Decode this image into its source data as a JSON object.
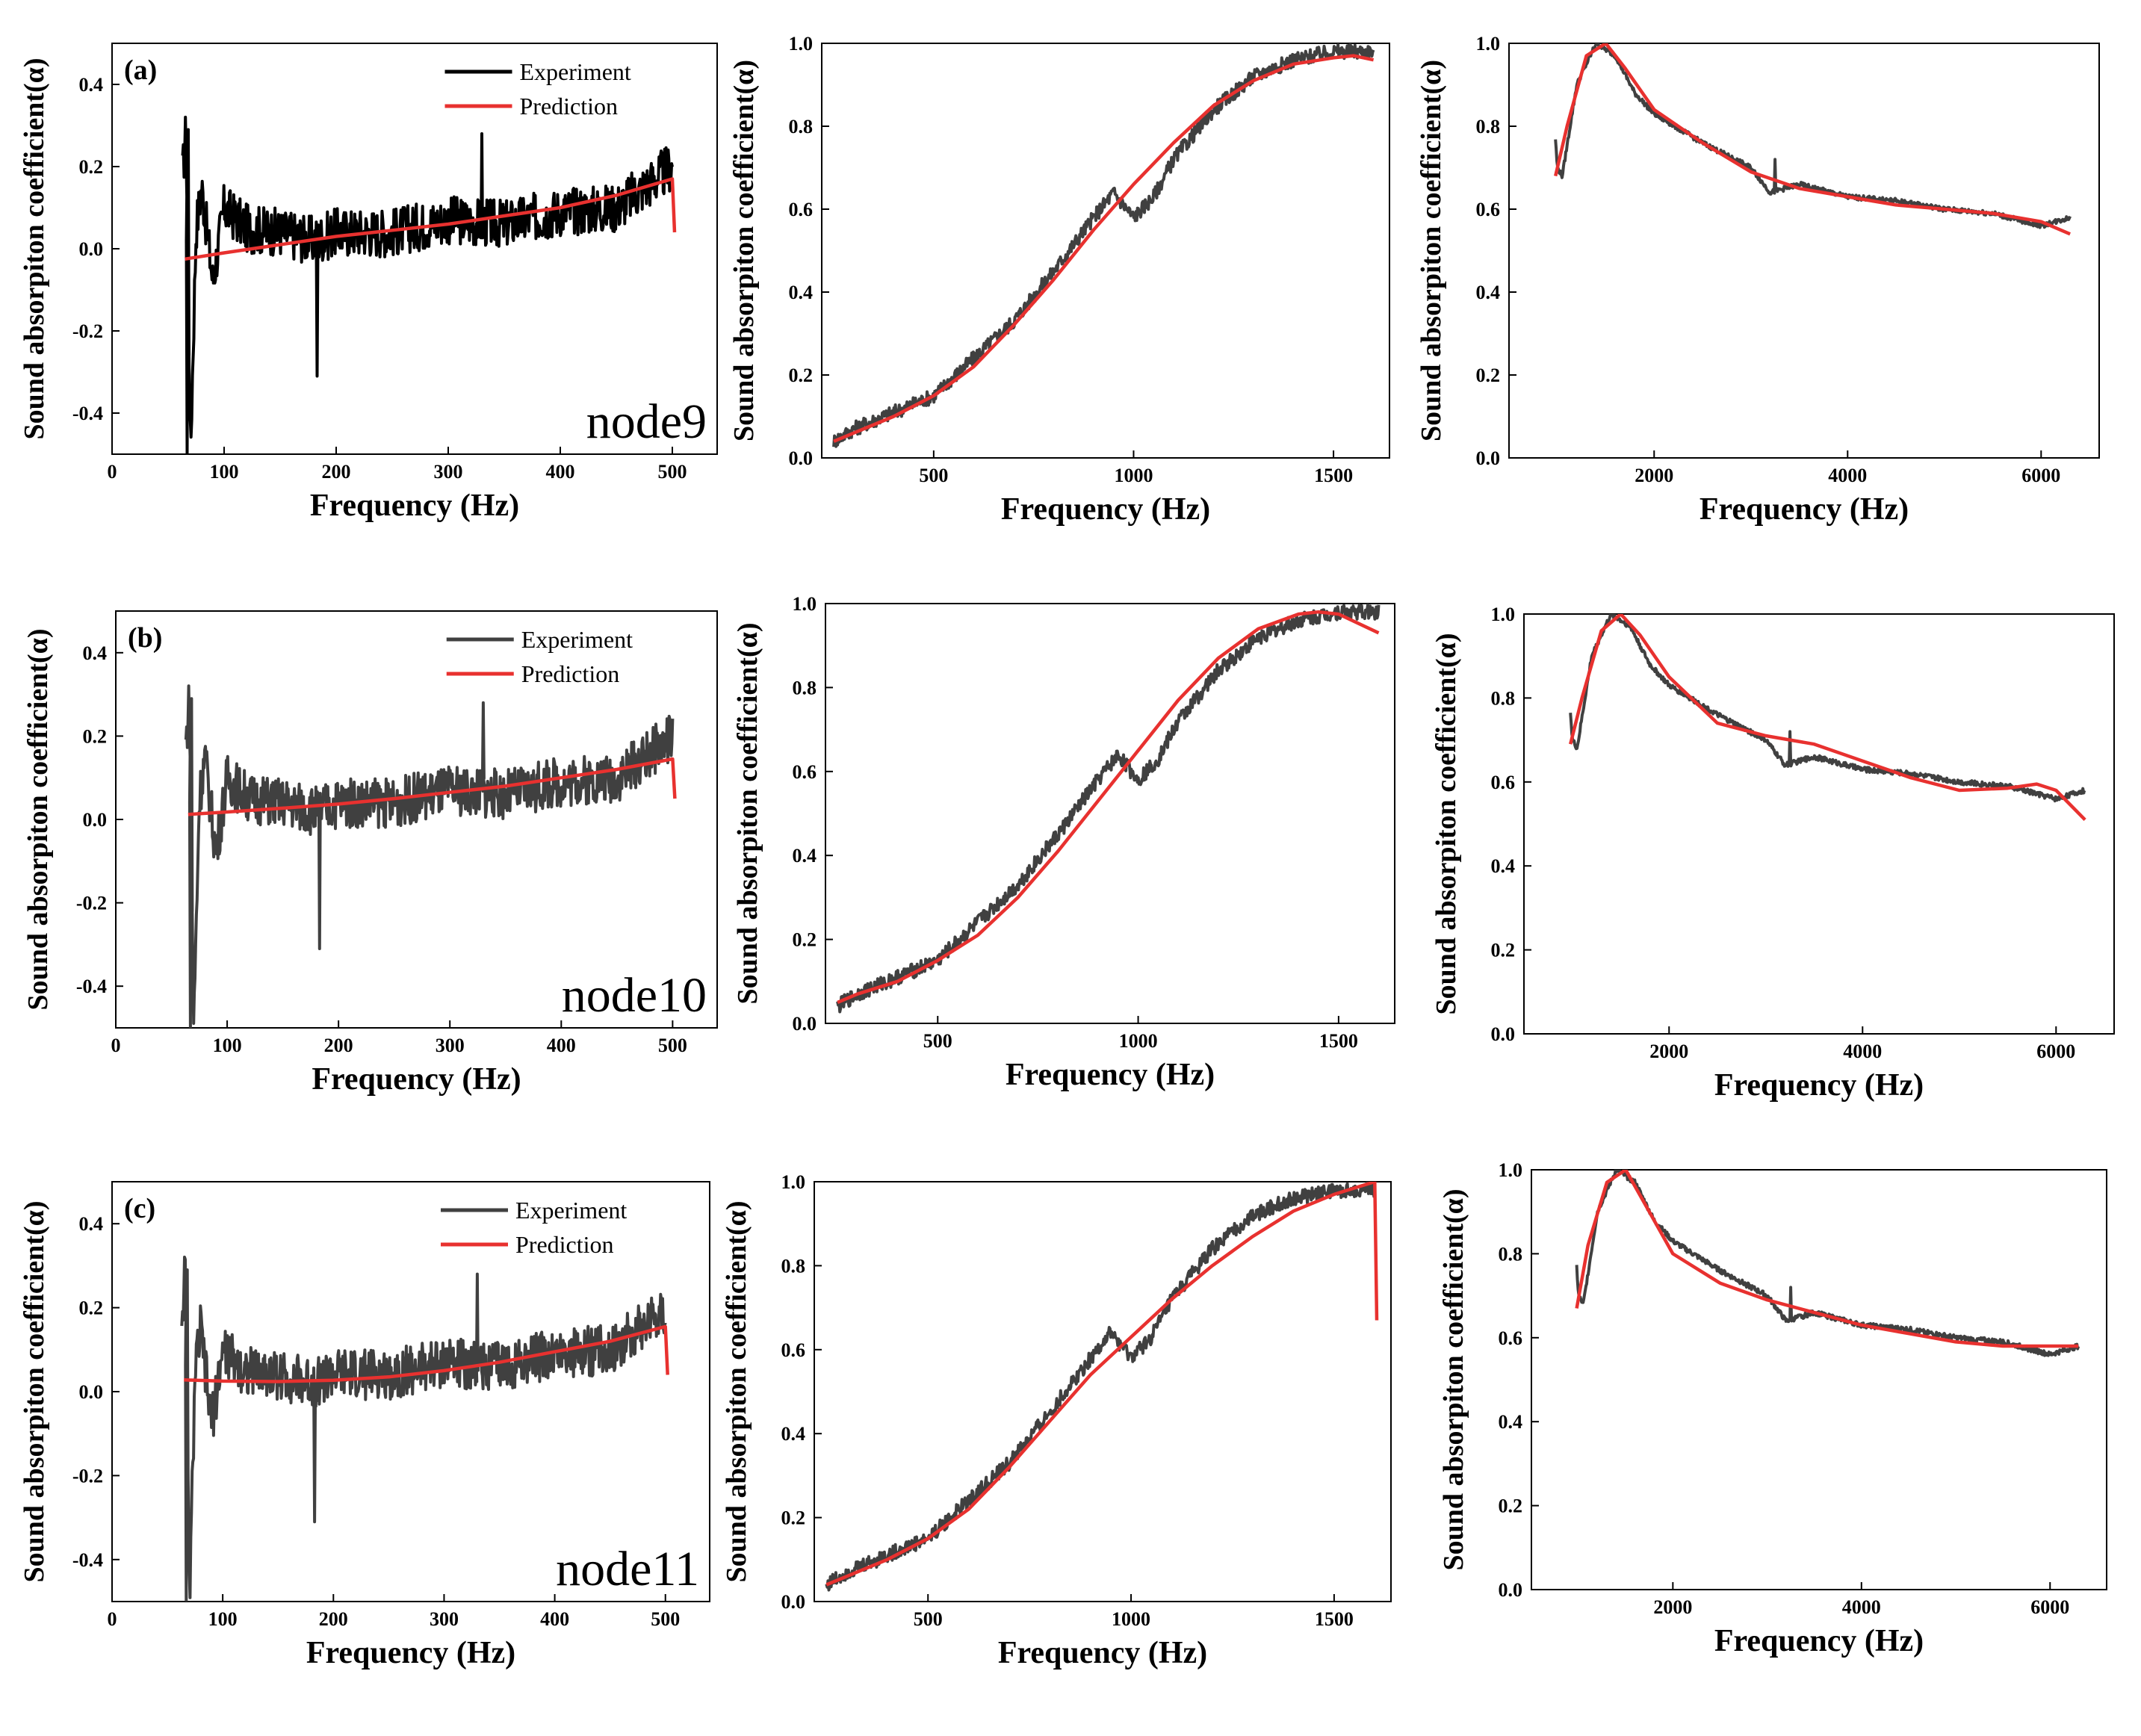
{
  "figure": {
    "colors": {
      "experiment": "#000000",
      "experiment_gray": "#404040",
      "prediction": "#e8312f",
      "axis": "#000000"
    }
  },
  "chart_data": [
    {
      "id": "a1",
      "type": "line",
      "panel_letter": "(a)",
      "annotation": "node9",
      "xlabel": "Frequency (Hz)",
      "ylabel": "Sound absorpiton coefficient(α)",
      "xlim": [
        0,
        540
      ],
      "ylim": [
        -0.5,
        0.5
      ],
      "xticks": [
        0,
        100,
        200,
        300,
        400,
        500
      ],
      "yticks": [
        -0.4,
        -0.2,
        0.0,
        0.2,
        0.4
      ],
      "ytick_labels": [
        "-0.4",
        "-0.2",
        "0.0",
        "0.2",
        "0.4"
      ],
      "legend": [
        "Experiment",
        "Prediction"
      ],
      "series": [
        {
          "name": "Experiment",
          "color": "#000000",
          "kind": "noisy_low",
          "x": [
            63,
            66,
            70,
            75,
            80,
            90,
            100,
            120,
            150,
            180,
            200,
            250,
            300,
            350,
            400,
            450,
            500
          ],
          "values": [
            0.18,
            0.29,
            -0.5,
            0.05,
            0.15,
            -0.08,
            0.1,
            0.05,
            0.04,
            0.02,
            0.04,
            0.04,
            0.07,
            0.06,
            0.09,
            0.1,
            0.2
          ]
        },
        {
          "name": "Prediction",
          "color": "#e8312f",
          "x": [
            65,
            100,
            150,
            200,
            250,
            300,
            350,
            400,
            450,
            500,
            502
          ],
          "values": [
            -0.025,
            -0.01,
            0.01,
            0.03,
            0.045,
            0.06,
            0.08,
            0.1,
            0.13,
            0.17,
            0.04
          ]
        }
      ],
      "spikes": [
        {
          "x": 67,
          "y": -0.5
        },
        {
          "x": 68,
          "y": 0.29
        },
        {
          "x": 183,
          "y": -0.31
        },
        {
          "x": 330,
          "y": 0.28
        }
      ]
    },
    {
      "id": "a2",
      "type": "line",
      "xlabel": "Frequency (Hz)",
      "ylabel": "Sound absorpiton coefficient(α)",
      "xlim": [
        220,
        1640
      ],
      "ylim": [
        0.0,
        1.0
      ],
      "xticks": [
        500,
        1000,
        1500
      ],
      "yticks": [
        0.0,
        0.2,
        0.4,
        0.6,
        0.8,
        1.0
      ],
      "ytick_labels": [
        "0.0",
        "0.2",
        "0.4",
        "0.6",
        "0.8",
        "1.0"
      ],
      "series": [
        {
          "name": "Experiment",
          "color": "#404040",
          "kind": "noisy_mid",
          "x": [
            250,
            300,
            400,
            500,
            600,
            700,
            800,
            900,
            950,
            1000,
            1050,
            1100,
            1200,
            1300,
            1400,
            1500,
            1600
          ],
          "values": [
            0.04,
            0.07,
            0.11,
            0.15,
            0.24,
            0.33,
            0.45,
            0.58,
            0.64,
            0.58,
            0.63,
            0.72,
            0.84,
            0.92,
            0.96,
            0.98,
            0.98
          ]
        },
        {
          "name": "Prediction",
          "color": "#e8312f",
          "x": [
            250,
            300,
            400,
            500,
            600,
            700,
            800,
            900,
            1000,
            1100,
            1200,
            1300,
            1400,
            1500,
            1550,
            1600
          ],
          "values": [
            0.04,
            0.06,
            0.1,
            0.15,
            0.22,
            0.32,
            0.43,
            0.55,
            0.66,
            0.76,
            0.85,
            0.91,
            0.95,
            0.965,
            0.97,
            0.96
          ]
        }
      ]
    },
    {
      "id": "a3",
      "type": "line",
      "xlabel": "Frequency (Hz)",
      "ylabel": "Sound absorpiton coefficient(α)",
      "xlim": [
        500,
        6600
      ],
      "ylim": [
        0.0,
        1.0
      ],
      "xticks": [
        2000,
        4000,
        6000
      ],
      "yticks": [
        0.0,
        0.2,
        0.4,
        0.6,
        0.8,
        1.0
      ],
      "ytick_labels": [
        "0.0",
        "0.2",
        "0.4",
        "0.6",
        "0.8",
        "1.0"
      ],
      "series": [
        {
          "name": "Experiment",
          "color": "#404040",
          "kind": "noisy_high",
          "x": [
            980,
            1000,
            1050,
            1200,
            1400,
            1600,
            1800,
            2000,
            2500,
            3000,
            3200,
            3500,
            4000,
            4500,
            5000,
            5500,
            6000,
            6300
          ],
          "values": [
            0.77,
            0.7,
            0.68,
            0.9,
            1.0,
            0.97,
            0.88,
            0.83,
            0.76,
            0.7,
            0.64,
            0.66,
            0.63,
            0.62,
            0.6,
            0.59,
            0.56,
            0.58
          ]
        },
        {
          "name": "Prediction",
          "color": "#e8312f",
          "x": [
            980,
            1100,
            1300,
            1500,
            1700,
            2000,
            2500,
            3000,
            3500,
            4000,
            4500,
            5000,
            5500,
            6000,
            6300
          ],
          "values": [
            0.68,
            0.8,
            0.97,
            1.0,
            0.94,
            0.84,
            0.76,
            0.69,
            0.65,
            0.63,
            0.61,
            0.6,
            0.59,
            0.57,
            0.54
          ]
        }
      ],
      "spikes": [
        {
          "x": 3250,
          "y": 0.72
        }
      ]
    },
    {
      "id": "b1",
      "type": "line",
      "panel_letter": "(b)",
      "annotation": "node10",
      "xlabel": "Frequency (Hz)",
      "ylabel": "Sound absorpiton coefficient(α)",
      "xlim": [
        0,
        540
      ],
      "ylim": [
        -0.5,
        0.5
      ],
      "xticks": [
        0,
        100,
        200,
        300,
        400,
        500
      ],
      "yticks": [
        -0.4,
        -0.2,
        0.0,
        0.2,
        0.4
      ],
      "ytick_labels": [
        "-0.4",
        "-0.2",
        "0.0",
        "0.2",
        "0.4"
      ],
      "legend": [
        "Experiment",
        "Prediction"
      ],
      "series": [
        {
          "name": "Experiment",
          "color": "#404040",
          "kind": "noisy_low",
          "x": [
            63,
            66,
            70,
            75,
            80,
            90,
            100,
            120,
            150,
            180,
            200,
            250,
            300,
            350,
            400,
            450,
            500
          ],
          "values": [
            0.18,
            0.29,
            -0.5,
            0.05,
            0.15,
            -0.08,
            0.1,
            0.05,
            0.04,
            0.02,
            0.04,
            0.04,
            0.07,
            0.06,
            0.09,
            0.1,
            0.2
          ]
        },
        {
          "name": "Prediction",
          "color": "#e8312f",
          "x": [
            65,
            100,
            150,
            200,
            250,
            300,
            350,
            400,
            450,
            500,
            502
          ],
          "values": [
            0.012,
            0.018,
            0.027,
            0.037,
            0.05,
            0.065,
            0.08,
            0.1,
            0.12,
            0.145,
            0.05
          ]
        }
      ],
      "spikes": [
        {
          "x": 67,
          "y": -0.5
        },
        {
          "x": 68,
          "y": 0.29
        },
        {
          "x": 183,
          "y": -0.31
        },
        {
          "x": 330,
          "y": 0.28
        }
      ]
    },
    {
      "id": "b2",
      "type": "line",
      "xlabel": "Frequency (Hz)",
      "ylabel": "Sound absorpiton coefficient(α)",
      "xlim": [
        220,
        1640
      ],
      "ylim": [
        0.0,
        1.0
      ],
      "xticks": [
        500,
        1000,
        1500
      ],
      "yticks": [
        0.0,
        0.2,
        0.4,
        0.6,
        0.8,
        1.0
      ],
      "ytick_labels": [
        "0.0",
        "0.2",
        "0.4",
        "0.6",
        "0.8",
        "1.0"
      ],
      "series": [
        {
          "name": "Experiment",
          "color": "#404040",
          "kind": "noisy_mid",
          "x": [
            250,
            300,
            400,
            500,
            600,
            700,
            800,
            900,
            950,
            1000,
            1050,
            1100,
            1200,
            1300,
            1400,
            1500,
            1600
          ],
          "values": [
            0.04,
            0.07,
            0.11,
            0.15,
            0.24,
            0.33,
            0.45,
            0.58,
            0.64,
            0.58,
            0.63,
            0.72,
            0.84,
            0.92,
            0.96,
            0.98,
            0.98
          ]
        },
        {
          "name": "Prediction",
          "color": "#e8312f",
          "x": [
            250,
            300,
            400,
            500,
            600,
            700,
            800,
            900,
            1000,
            1100,
            1200,
            1300,
            1400,
            1450,
            1500,
            1600
          ],
          "values": [
            0.05,
            0.07,
            0.1,
            0.15,
            0.21,
            0.3,
            0.41,
            0.53,
            0.65,
            0.77,
            0.87,
            0.94,
            0.975,
            0.98,
            0.975,
            0.93
          ]
        }
      ]
    },
    {
      "id": "b3",
      "type": "line",
      "xlabel": "Frequency (Hz)",
      "ylabel": "Sound absorpiton coefficient(α)",
      "xlim": [
        500,
        6600
      ],
      "ylim": [
        0.0,
        1.0
      ],
      "xticks": [
        2000,
        4000,
        6000
      ],
      "yticks": [
        0.0,
        0.2,
        0.4,
        0.6,
        0.8,
        1.0
      ],
      "ytick_labels": [
        "0.0",
        "0.2",
        "0.4",
        "0.6",
        "0.8",
        "1.0"
      ],
      "series": [
        {
          "name": "Experiment",
          "color": "#404040",
          "kind": "noisy_high",
          "x": [
            980,
            1000,
            1050,
            1200,
            1400,
            1600,
            1800,
            2000,
            2500,
            3000,
            3200,
            3500,
            4000,
            4500,
            5000,
            5500,
            6000,
            6300
          ],
          "values": [
            0.77,
            0.7,
            0.68,
            0.9,
            1.0,
            0.97,
            0.88,
            0.83,
            0.76,
            0.7,
            0.64,
            0.66,
            0.63,
            0.62,
            0.6,
            0.59,
            0.56,
            0.58
          ]
        },
        {
          "name": "Prediction",
          "color": "#e8312f",
          "x": [
            980,
            1100,
            1300,
            1500,
            1700,
            2000,
            2500,
            3000,
            3500,
            4000,
            4500,
            5000,
            5500,
            5800,
            6000,
            6300
          ],
          "values": [
            0.69,
            0.8,
            0.96,
            1.0,
            0.95,
            0.85,
            0.74,
            0.71,
            0.69,
            0.65,
            0.61,
            0.58,
            0.585,
            0.595,
            0.58,
            0.51
          ]
        }
      ],
      "spikes": [
        {
          "x": 3250,
          "y": 0.72
        }
      ]
    },
    {
      "id": "c1",
      "type": "line",
      "panel_letter": "(c)",
      "annotation": "node11",
      "xlabel": "Frequency (Hz)",
      "ylabel": "Sound absorpiton coefficient(α)",
      "xlim": [
        0,
        540
      ],
      "ylim": [
        -0.5,
        0.5
      ],
      "xticks": [
        0,
        100,
        200,
        300,
        400,
        500
      ],
      "yticks": [
        -0.4,
        -0.2,
        0.0,
        0.2,
        0.4
      ],
      "ytick_labels": [
        "-0.4",
        "-0.2",
        "0.0",
        "0.2",
        "0.4"
      ],
      "legend": [
        "Experiment",
        "Prediction"
      ],
      "series": [
        {
          "name": "Experiment",
          "color": "#404040",
          "kind": "noisy_low",
          "x": [
            63,
            66,
            70,
            75,
            80,
            90,
            100,
            120,
            150,
            180,
            200,
            250,
            300,
            350,
            400,
            450,
            500
          ],
          "values": [
            0.18,
            0.29,
            -0.5,
            0.05,
            0.15,
            -0.08,
            0.1,
            0.05,
            0.04,
            0.02,
            0.04,
            0.04,
            0.07,
            0.06,
            0.09,
            0.1,
            0.2
          ]
        },
        {
          "name": "Prediction",
          "color": "#e8312f",
          "x": [
            65,
            100,
            150,
            200,
            250,
            300,
            350,
            400,
            450,
            500,
            502
          ],
          "values": [
            0.028,
            0.025,
            0.024,
            0.027,
            0.035,
            0.05,
            0.07,
            0.095,
            0.12,
            0.155,
            0.04
          ]
        }
      ],
      "spikes": [
        {
          "x": 67,
          "y": -0.5
        },
        {
          "x": 68,
          "y": 0.29
        },
        {
          "x": 183,
          "y": -0.31
        },
        {
          "x": 330,
          "y": 0.28
        }
      ]
    },
    {
      "id": "c2",
      "type": "line",
      "xlabel": "Frequency (Hz)",
      "ylabel": "Sound absorpiton coefficient(α)",
      "xlim": [
        220,
        1640
      ],
      "ylim": [
        0.0,
        1.0
      ],
      "xticks": [
        500,
        1000,
        1500
      ],
      "yticks": [
        0.0,
        0.2,
        0.4,
        0.6,
        0.8,
        1.0
      ],
      "ytick_labels": [
        "0.0",
        "0.2",
        "0.4",
        "0.6",
        "0.8",
        "1.0"
      ],
      "series": [
        {
          "name": "Experiment",
          "color": "#404040",
          "kind": "noisy_mid",
          "x": [
            250,
            300,
            400,
            500,
            600,
            700,
            800,
            900,
            950,
            1000,
            1050,
            1100,
            1200,
            1300,
            1400,
            1500,
            1600
          ],
          "values": [
            0.04,
            0.07,
            0.11,
            0.15,
            0.24,
            0.33,
            0.45,
            0.58,
            0.64,
            0.58,
            0.63,
            0.72,
            0.84,
            0.92,
            0.96,
            0.98,
            0.98
          ]
        },
        {
          "name": "Prediction",
          "color": "#e8312f",
          "x": [
            250,
            300,
            400,
            500,
            600,
            700,
            800,
            900,
            1000,
            1100,
            1200,
            1300,
            1400,
            1500,
            1600,
            1605
          ],
          "values": [
            0.04,
            0.06,
            0.1,
            0.15,
            0.22,
            0.32,
            0.43,
            0.54,
            0.63,
            0.72,
            0.8,
            0.87,
            0.93,
            0.97,
            1.0,
            0.67
          ]
        }
      ]
    },
    {
      "id": "c3",
      "type": "line",
      "xlabel": "Frequency (Hz)",
      "ylabel": "Sound absorpiton coefficient(α)",
      "xlim": [
        500,
        6600
      ],
      "ylim": [
        0.0,
        1.0
      ],
      "xticks": [
        2000,
        4000,
        6000
      ],
      "yticks": [
        0.0,
        0.2,
        0.4,
        0.6,
        0.8,
        1.0
      ],
      "ytick_labels": [
        "0.0",
        "0.2",
        "0.4",
        "0.6",
        "0.8",
        "1.0"
      ],
      "series": [
        {
          "name": "Experiment",
          "color": "#404040",
          "kind": "noisy_high",
          "x": [
            980,
            1000,
            1050,
            1200,
            1400,
            1600,
            1800,
            2000,
            2500,
            3000,
            3200,
            3500,
            4000,
            4500,
            5000,
            5500,
            6000,
            6300
          ],
          "values": [
            0.77,
            0.7,
            0.68,
            0.9,
            1.0,
            0.97,
            0.88,
            0.83,
            0.76,
            0.7,
            0.64,
            0.66,
            0.63,
            0.62,
            0.6,
            0.59,
            0.56,
            0.58
          ]
        },
        {
          "name": "Prediction",
          "color": "#e8312f",
          "x": [
            980,
            1100,
            1300,
            1500,
            1700,
            2000,
            2500,
            3000,
            3500,
            4000,
            4500,
            5000,
            5500,
            6000,
            6300
          ],
          "values": [
            0.67,
            0.82,
            0.97,
            1.0,
            0.92,
            0.8,
            0.73,
            0.69,
            0.66,
            0.63,
            0.61,
            0.59,
            0.58,
            0.58,
            0.58
          ]
        }
      ],
      "spikes": [
        {
          "x": 3250,
          "y": 0.72
        }
      ]
    }
  ]
}
